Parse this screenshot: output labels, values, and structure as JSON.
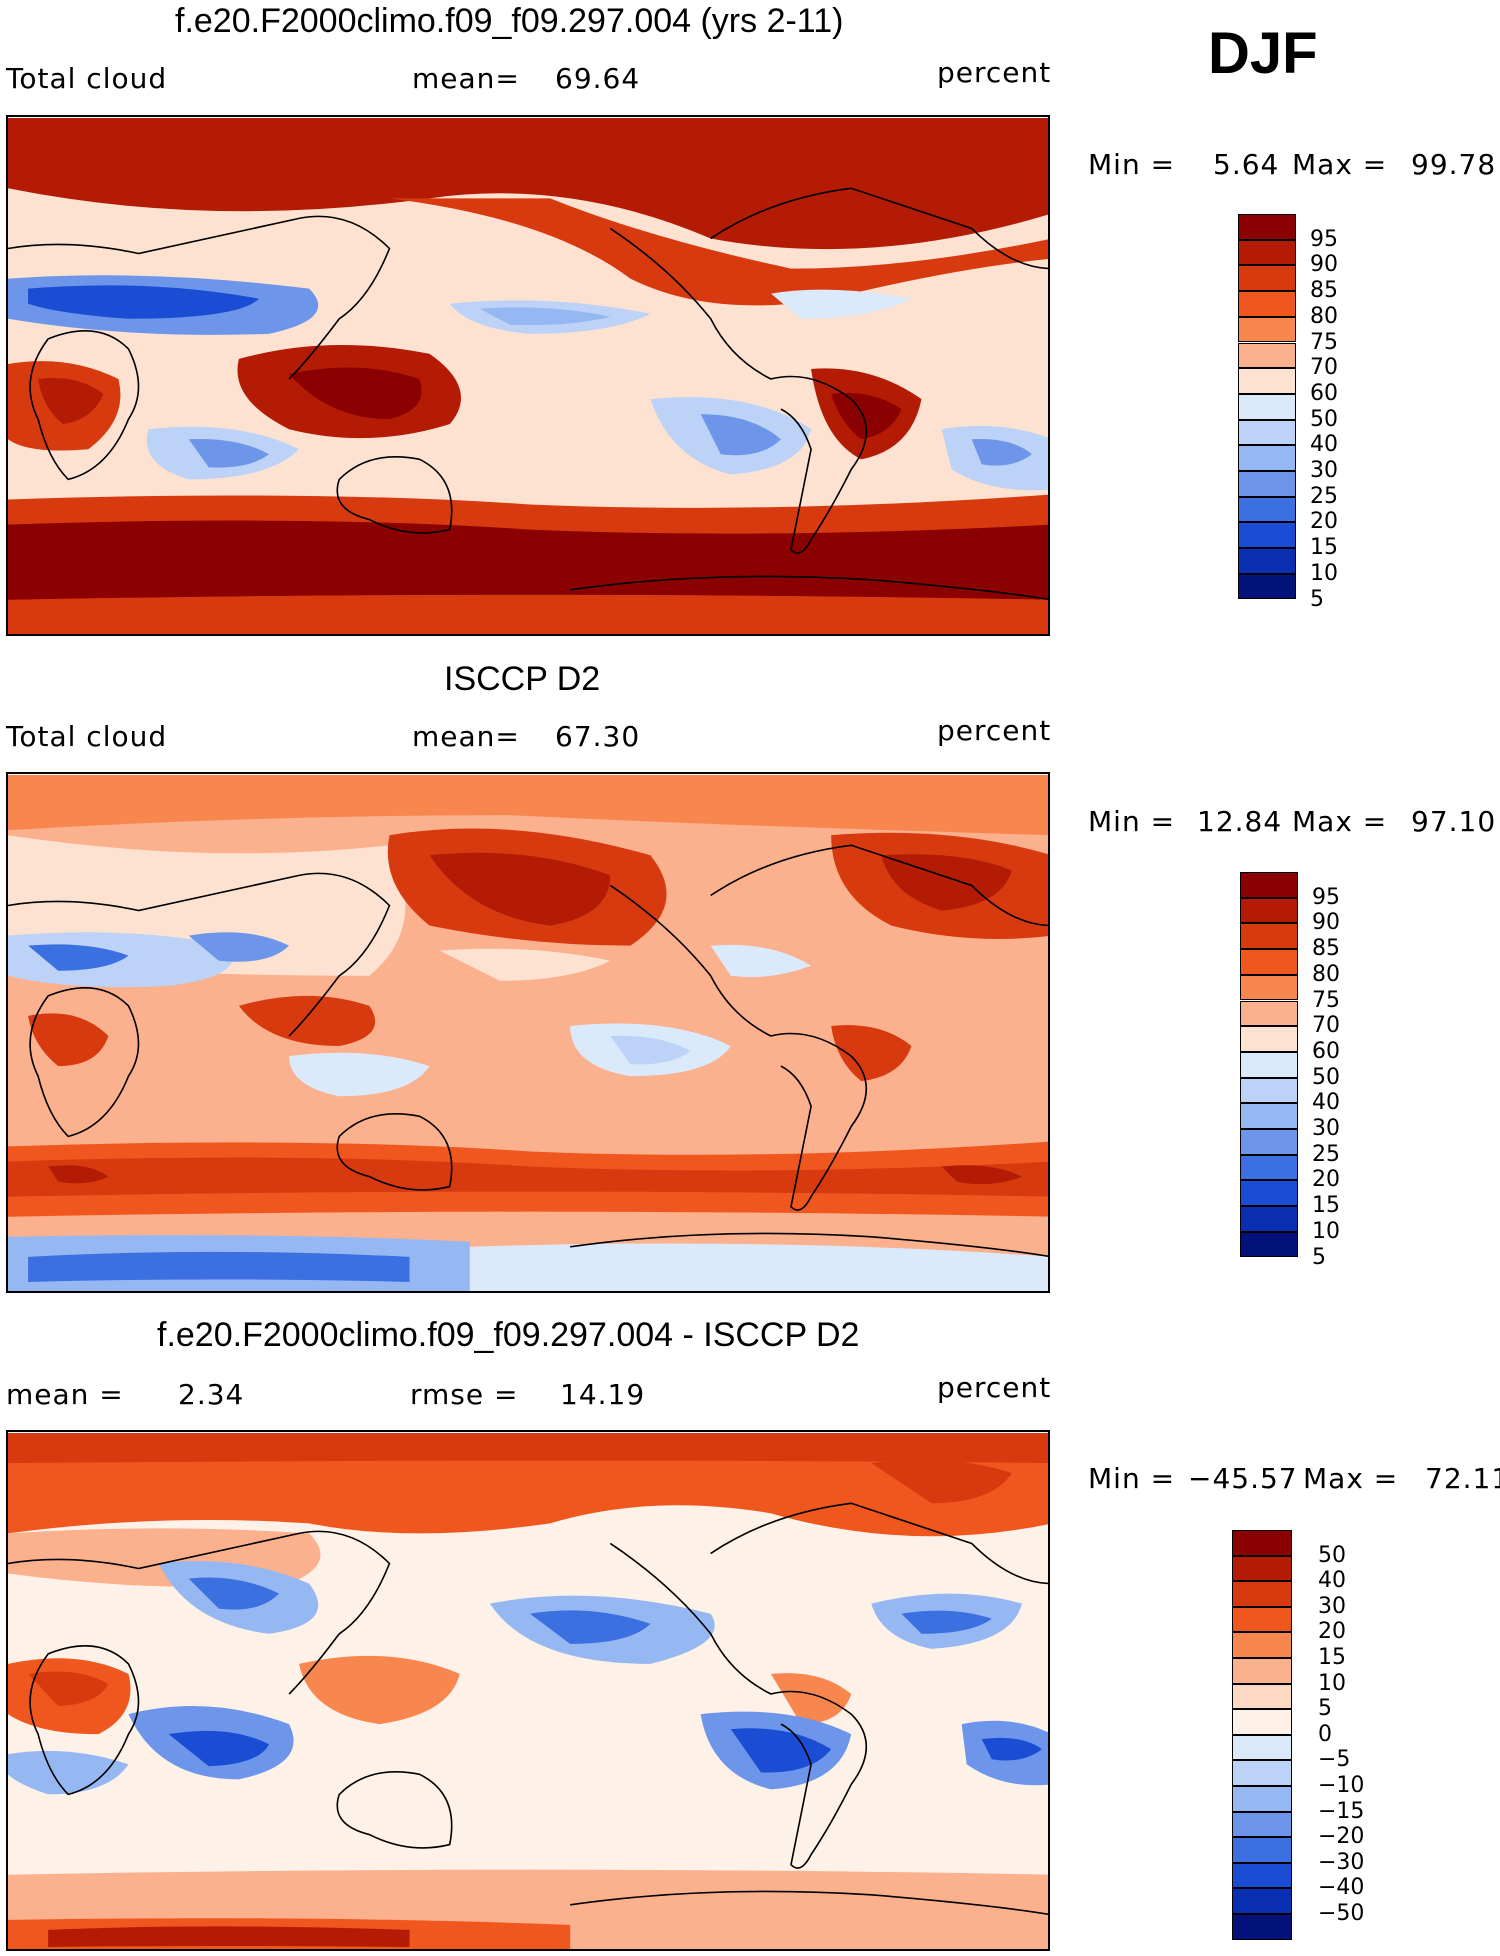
{
  "season": "DJF",
  "panels": [
    {
      "title": "f.e20.F2000climo.f09_f09.297.004 (yrs 2-11)",
      "left_label": "Total cloud",
      "mid_label": "mean=",
      "mid_value": "69.64",
      "units": "percent",
      "min_label": "Min =",
      "min_value": "5.64",
      "max_label": "Max =",
      "max_value": "99.78",
      "legend": [
        "95",
        "90",
        "85",
        "80",
        "75",
        "70",
        "60",
        "50",
        "40",
        "30",
        "25",
        "20",
        "15",
        "10",
        "5"
      ]
    },
    {
      "title": "ISCCP D2",
      "left_label": "Total cloud",
      "mid_label": "mean=",
      "mid_value": "67.30",
      "units": "percent",
      "min_label": "Min =",
      "min_value": "12.84",
      "max_label": "Max =",
      "max_value": "97.10",
      "legend": [
        "95",
        "90",
        "85",
        "80",
        "75",
        "70",
        "60",
        "50",
        "40",
        "30",
        "25",
        "20",
        "15",
        "10",
        "5"
      ]
    },
    {
      "title": "f.e20.F2000climo.f09_f09.297.004 - ISCCP D2",
      "left_label": "mean =",
      "left_value": "2.34",
      "mid_label": "rmse =",
      "mid_value": "14.19",
      "units": "percent",
      "min_label": "Min =",
      "min_value": "−45.57",
      "max_label": "Max =",
      "max_value": "72.11",
      "legend": [
        "50",
        "40",
        "30",
        "20",
        "15",
        "10",
        "5",
        "0",
        "−5",
        "−10",
        "−15",
        "−20",
        "−30",
        "−40",
        "−50"
      ]
    }
  ],
  "colors": {
    "abs_scale": [
      "#8b0000",
      "#b31b05",
      "#d83a10",
      "#f0571e",
      "#f8864f",
      "#fbb08e",
      "#fde2d2",
      "#dbeafb",
      "#bcd2f7",
      "#96b8f2",
      "#6d96ea",
      "#3c6fe0",
      "#1a4dd4",
      "#0a2fb3",
      "#02127a"
    ],
    "diff_scale": [
      "#8b0000",
      "#b31b05",
      "#d83a10",
      "#f0571e",
      "#f8864f",
      "#fbb08e",
      "#fdd9c4",
      "#fdf1e8",
      "#dbeafb",
      "#bcd2f7",
      "#96b8f2",
      "#6d96ea",
      "#3c6fe0",
      "#1a4dd4",
      "#0a2fb3",
      "#02127a"
    ]
  }
}
